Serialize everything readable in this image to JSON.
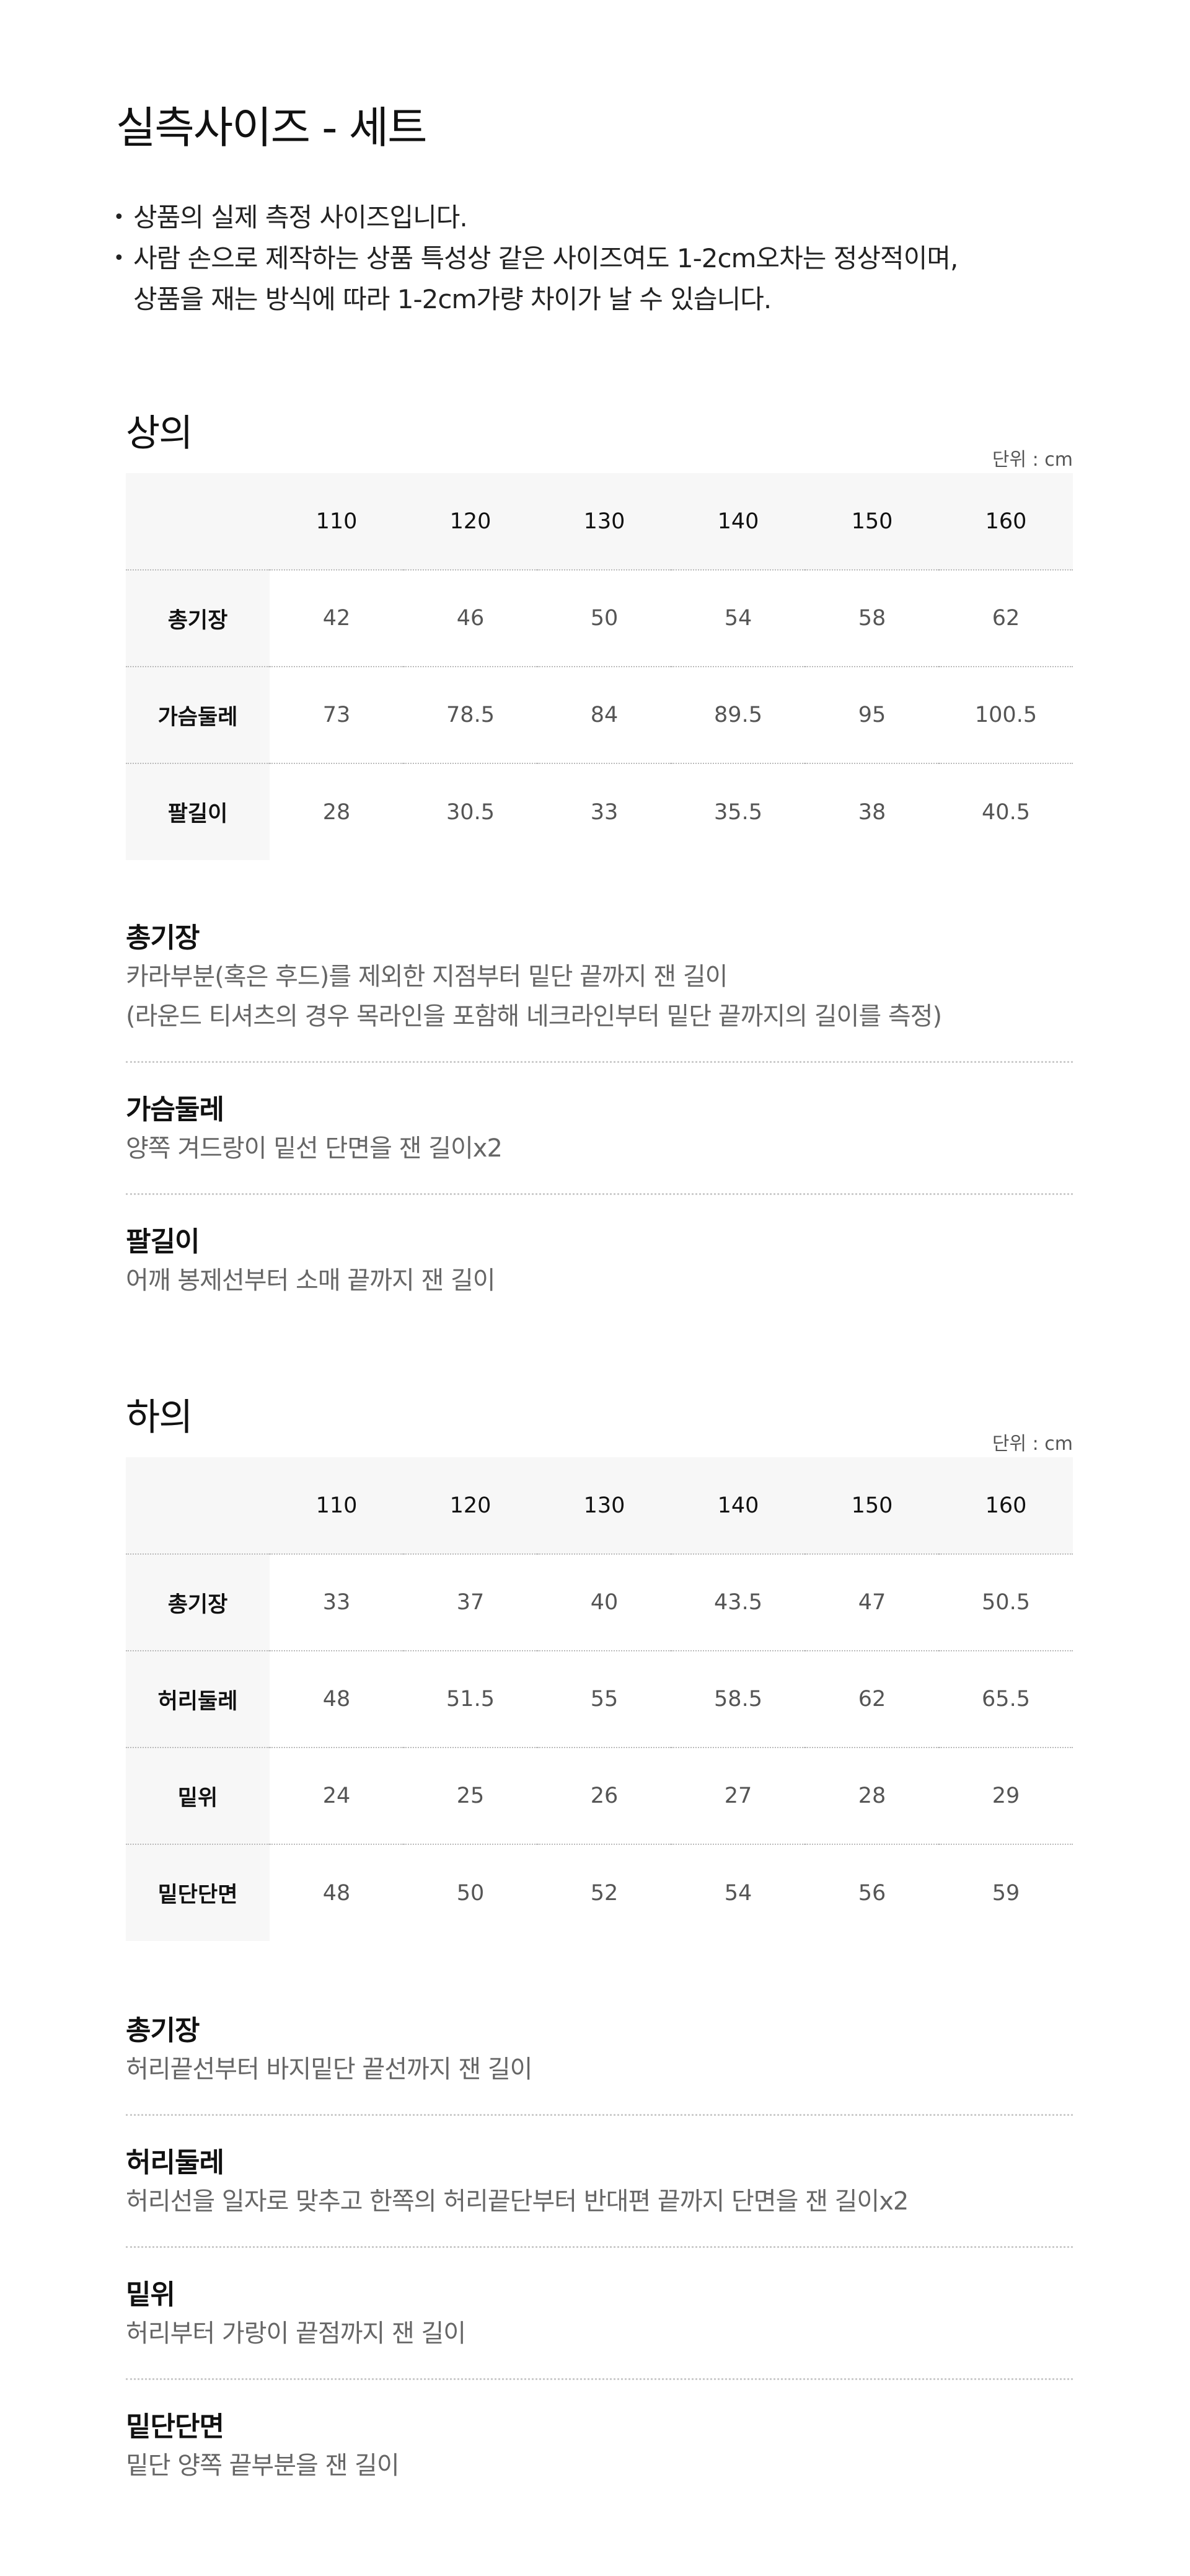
{
  "title": "실측사이즈 - 세트",
  "notes": [
    "상품의 실제 측정 사이즈입니다.",
    "사람 손으로 제작하는 상품 특성상 같은 사이즈여도 1-2cm오차는 정상적이며,",
    "상품을 재는 방식에 따라 1-2cm가량 차이가 날 수 있습니다."
  ],
  "top": {
    "title": "상의",
    "unit": "단위 : cm",
    "sizes": [
      "110",
      "120",
      "130",
      "140",
      "150",
      "160"
    ],
    "rows": [
      {
        "label": "총기장",
        "values": [
          "42",
          "46",
          "50",
          "54",
          "58",
          "62"
        ]
      },
      {
        "label": "가슴둘레",
        "values": [
          "73",
          "78.5",
          "84",
          "89.5",
          "95",
          "100.5"
        ]
      },
      {
        "label": "팔길이",
        "values": [
          "28",
          "30.5",
          "33",
          "35.5",
          "38",
          "40.5"
        ]
      }
    ],
    "desc": [
      {
        "title": "총기장",
        "lines": [
          "카라부분(혹은 후드)를 제외한 지점부터 밑단 끝까지 잰 길이",
          "(라운드 티셔츠의 경우 목라인을 포함해 네크라인부터 밑단 끝까지의 길이를 측정)"
        ]
      },
      {
        "title": "가슴둘레",
        "lines": [
          "양쪽 겨드랑이 밑선 단면을 잰 길이x2"
        ]
      },
      {
        "title": "팔길이",
        "lines": [
          "어깨 봉제선부터 소매 끝까지 잰 길이"
        ]
      }
    ]
  },
  "bottom": {
    "title": "하의",
    "unit": "단위 : cm",
    "sizes": [
      "110",
      "120",
      "130",
      "140",
      "150",
      "160"
    ],
    "rows": [
      {
        "label": "총기장",
        "values": [
          "33",
          "37",
          "40",
          "43.5",
          "47",
          "50.5"
        ]
      },
      {
        "label": "허리둘레",
        "values": [
          "48",
          "51.5",
          "55",
          "58.5",
          "62",
          "65.5"
        ]
      },
      {
        "label": "밑위",
        "values": [
          "24",
          "25",
          "26",
          "27",
          "28",
          "29"
        ]
      },
      {
        "label": "밑단단면",
        "values": [
          "48",
          "50",
          "52",
          "54",
          "56",
          "59"
        ]
      }
    ],
    "desc": [
      {
        "title": "총기장",
        "lines": [
          "허리끝선부터 바지밑단 끝선까지 잰 길이"
        ]
      },
      {
        "title": "허리둘레",
        "lines": [
          "허리선을 일자로 맞추고 한쪽의 허리끝단부터 반대편 끝까지 단면을 잰 길이x2"
        ]
      },
      {
        "title": "밑위",
        "lines": [
          "허리부터 가랑이 끝점까지 잰 길이"
        ]
      },
      {
        "title": "밑단단면",
        "lines": [
          "밑단 양쪽 끝부분을 잰 길이"
        ]
      }
    ]
  }
}
